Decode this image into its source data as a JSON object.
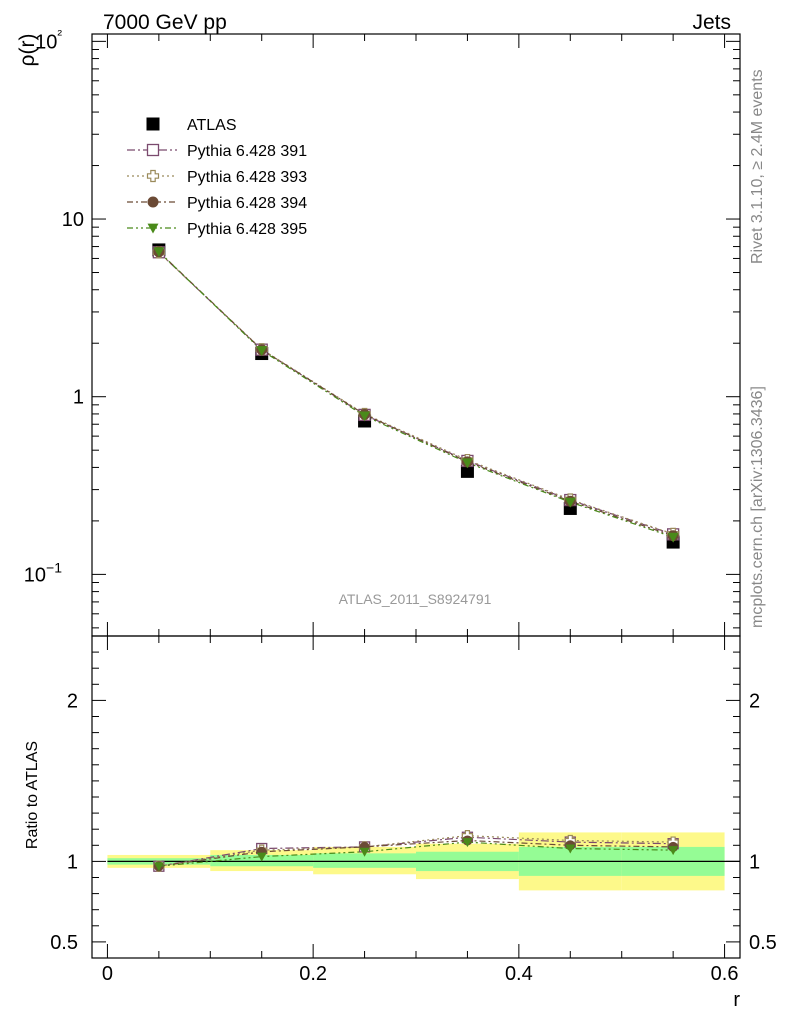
{
  "header": {
    "left": "7000 GeV pp",
    "right": "Jets"
  },
  "side_text": {
    "rivet": "Rivet 3.1.10, ≥ 2.4M events",
    "mcplots": "mcplots.cern.ch [arXiv:1306.3436]"
  },
  "analysis_id": "ATLAS_2011_S8924791",
  "chart_data": [
    {
      "type": "scatter",
      "panel": "main",
      "ylabel": "ρ(r)",
      "yscale": "log",
      "ylim": [
        0.045,
        110
      ],
      "xlim": [
        -0.015,
        0.615
      ],
      "x": [
        0.05,
        0.15,
        0.25,
        0.35,
        0.45,
        0.55
      ],
      "y_ticks_labels": [
        "10−1",
        "1",
        "10",
        "10²"
      ],
      "legend_position": "top-left",
      "series": [
        {
          "name": "ATLAS",
          "marker": "filled-square",
          "color": "#000000",
          "values": [
            6.7,
            1.75,
            0.73,
            0.38,
            0.235,
            0.152
          ]
        },
        {
          "name": "Pythia 6.428 391",
          "marker": "open-square",
          "color": "#7b4a6e",
          "values": [
            6.5,
            1.84,
            0.79,
            0.435,
            0.262,
            0.168
          ]
        },
        {
          "name": "Pythia 6.428 393",
          "marker": "open-cross",
          "color": "#9a8a5a",
          "values": [
            6.5,
            1.85,
            0.8,
            0.44,
            0.264,
            0.169
          ]
        },
        {
          "name": "Pythia 6.428 394",
          "marker": "filled-circle",
          "color": "#6b4a35",
          "values": [
            6.55,
            1.84,
            0.795,
            0.43,
            0.258,
            0.165
          ]
        },
        {
          "name": "Pythia 6.428 395",
          "marker": "filled-triangle-down",
          "color": "#4a8a1a",
          "values": [
            6.55,
            1.82,
            0.78,
            0.425,
            0.255,
            0.162
          ]
        }
      ]
    },
    {
      "type": "scatter",
      "panel": "ratio",
      "ylabel": "Ratio to ATLAS",
      "xlabel": "r",
      "ylim": [
        0.4,
        2.4
      ],
      "xlim": [
        -0.015,
        0.615
      ],
      "x": [
        0.05,
        0.15,
        0.25,
        0.35,
        0.45,
        0.55
      ],
      "x_tick_labels": [
        "0",
        "0.2",
        "0.4",
        "0.6"
      ],
      "y_tick_labels": [
        "0.5",
        "1",
        "2"
      ],
      "bands": [
        {
          "lo": 0.0,
          "hi": 0.1,
          "yellow": [
            0.96,
            1.04
          ],
          "green": [
            0.98,
            1.02
          ]
        },
        {
          "lo": 0.1,
          "hi": 0.2,
          "yellow": [
            0.94,
            1.07
          ],
          "green": [
            0.97,
            1.04
          ]
        },
        {
          "lo": 0.2,
          "hi": 0.3,
          "yellow": [
            0.92,
            1.09
          ],
          "green": [
            0.96,
            1.05
          ]
        },
        {
          "lo": 0.3,
          "hi": 0.4,
          "yellow": [
            0.89,
            1.11
          ],
          "green": [
            0.94,
            1.06
          ]
        },
        {
          "lo": 0.4,
          "hi": 0.5,
          "yellow": [
            0.82,
            1.18
          ],
          "green": [
            0.91,
            1.09
          ]
        },
        {
          "lo": 0.5,
          "hi": 0.6,
          "yellow": [
            0.82,
            1.18
          ],
          "green": [
            0.91,
            1.09
          ]
        }
      ],
      "series": [
        {
          "name": "Pythia 6.428 391",
          "values": [
            0.97,
            1.08,
            1.09,
            1.15,
            1.12,
            1.11
          ]
        },
        {
          "name": "Pythia 6.428 393",
          "values": [
            0.97,
            1.07,
            1.09,
            1.16,
            1.13,
            1.12
          ]
        },
        {
          "name": "Pythia 6.428 394",
          "values": [
            0.97,
            1.06,
            1.09,
            1.13,
            1.1,
            1.09
          ]
        },
        {
          "name": "Pythia 6.428 395",
          "values": [
            0.97,
            1.03,
            1.06,
            1.12,
            1.08,
            1.07
          ]
        }
      ]
    }
  ]
}
